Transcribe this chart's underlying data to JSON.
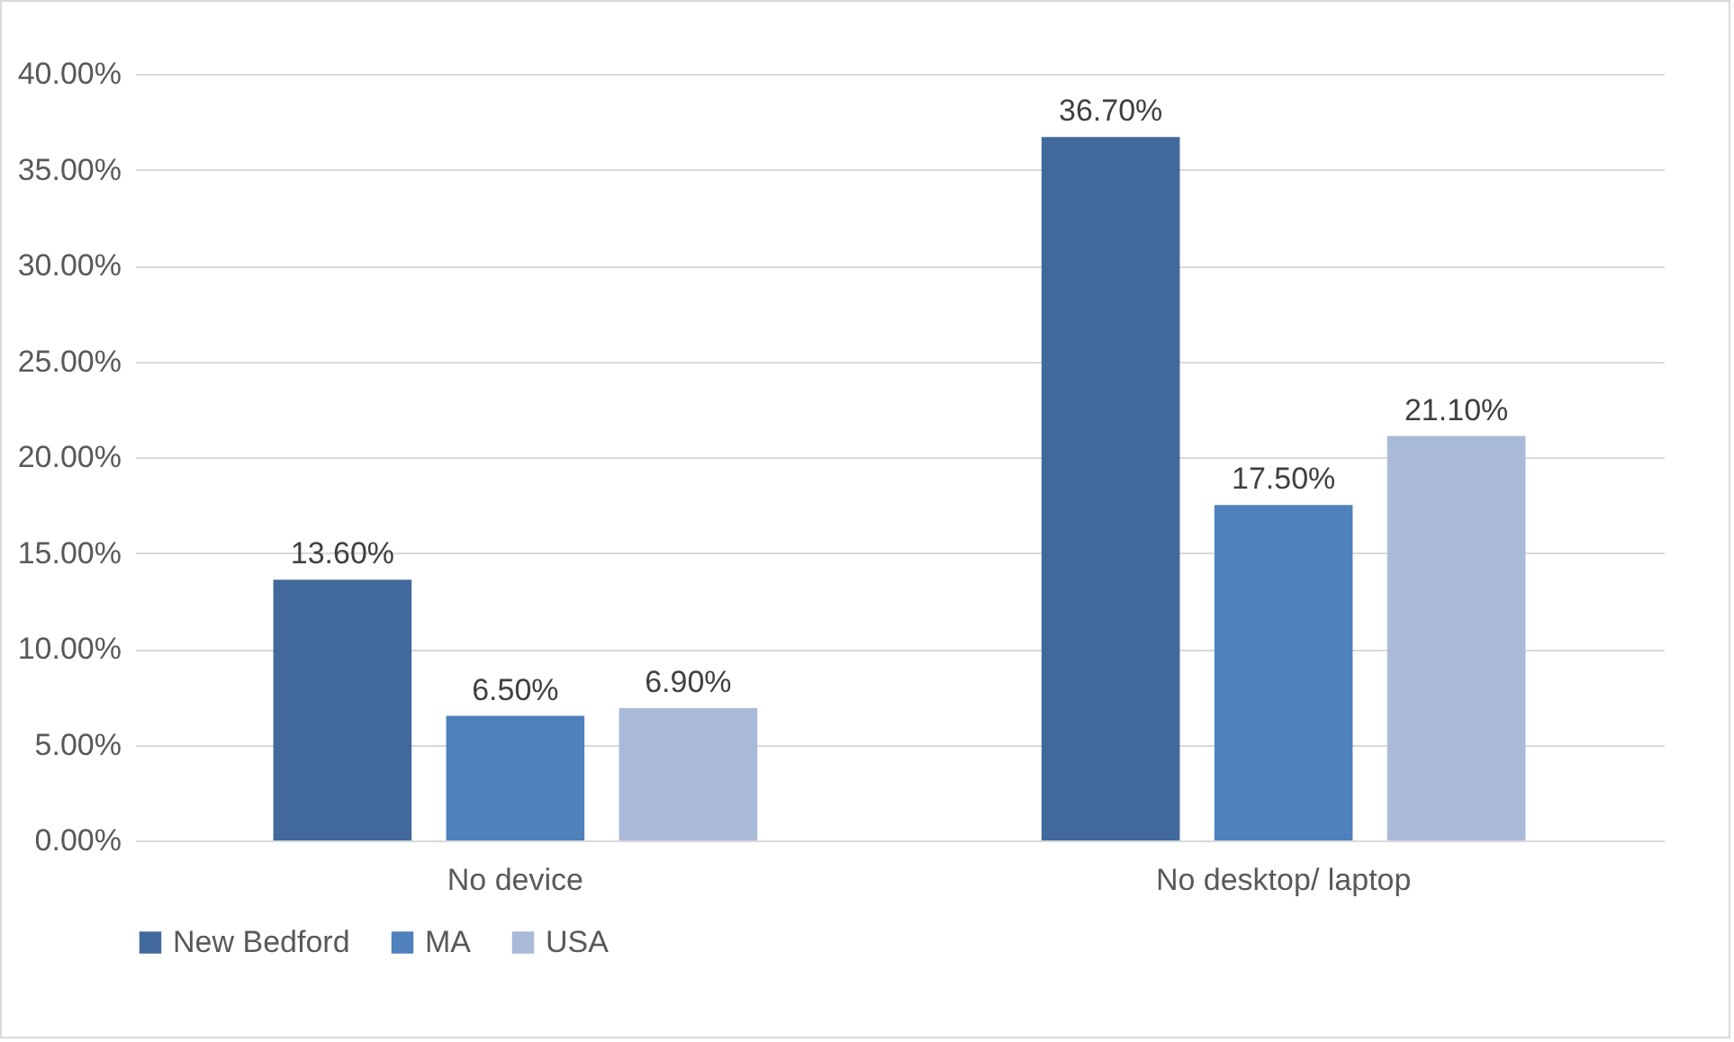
{
  "chart_data": {
    "type": "bar",
    "categories": [
      "No device",
      "No desktop/ laptop"
    ],
    "series": [
      {
        "name": "New Bedford",
        "color": "#41699b",
        "values": [
          13.6,
          36.7
        ],
        "value_labels": [
          "13.60%",
          "36.70%"
        ]
      },
      {
        "name": "MA",
        "color": "#4f81bd",
        "values": [
          6.5,
          17.5
        ],
        "value_labels": [
          "6.50%",
          "17.50%"
        ]
      },
      {
        "name": "USA",
        "color": "#a9b9d8",
        "values": [
          6.9,
          21.1
        ],
        "value_labels": [
          "6.90%",
          "21.10%"
        ]
      }
    ],
    "ylim": [
      0,
      40
    ],
    "yticks": [
      {
        "value": 0,
        "label": "0.00%"
      },
      {
        "value": 5,
        "label": "5.00%"
      },
      {
        "value": 10,
        "label": "10.00%"
      },
      {
        "value": 15,
        "label": "15.00%"
      },
      {
        "value": 20,
        "label": "20.00%"
      },
      {
        "value": 25,
        "label": "25.00%"
      },
      {
        "value": 30,
        "label": "30.00%"
      },
      {
        "value": 35,
        "label": "35.00%"
      },
      {
        "value": 40,
        "label": "40.00%"
      }
    ],
    "grid": "y",
    "legend": "bottom"
  }
}
